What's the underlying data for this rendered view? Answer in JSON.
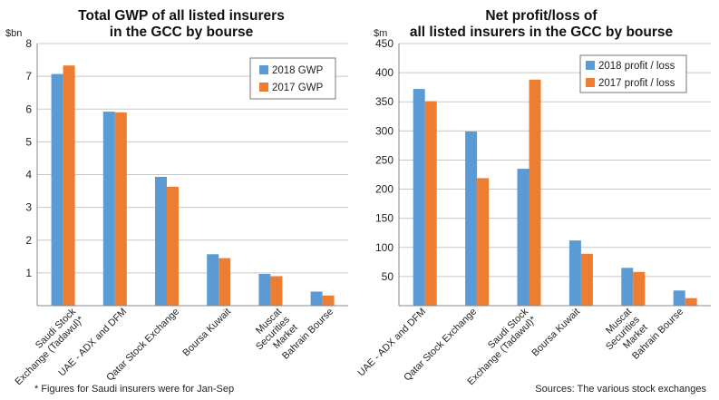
{
  "colors": {
    "series_2018": "#5b9bd5",
    "series_2017": "#ed7d31",
    "axis": "#888888",
    "grid": "#c8c8c8"
  },
  "footnotes": {
    "left": "* Figures for Saudi insurers were for Jan-Sep",
    "right": "Sources: The various stock exchanges"
  },
  "chart_data": [
    {
      "type": "bar",
      "title": [
        "Total GWP of all listed insurers",
        "in the GCC by bourse"
      ],
      "unit_label": "$bn",
      "ylim": [
        0,
        8
      ],
      "yticks": [
        "1",
        "2",
        "3",
        "4",
        "5",
        "6",
        "7",
        "8"
      ],
      "grid": true,
      "legend_placement": "top-right",
      "categories": [
        [
          "Saudi Stock",
          "Exchange (Tadawul)*"
        ],
        [
          "UAE - ADX and DFM"
        ],
        [
          "Qatar Stock Exchange"
        ],
        [
          "Boursa Kuwait"
        ],
        [
          "Muscat",
          "Securities",
          "Market"
        ],
        [
          "Bahrain Bourse"
        ]
      ],
      "series": [
        {
          "name": "2018 GWP",
          "values": [
            7.07,
            5.92,
            3.93,
            1.57,
            0.97,
            0.43
          ]
        },
        {
          "name": "2017 GWP",
          "values": [
            7.33,
            5.9,
            3.63,
            1.45,
            0.9,
            0.31
          ]
        }
      ]
    },
    {
      "type": "bar",
      "title": [
        "Net profit/loss of",
        "all listed insurers in the GCC by bourse"
      ],
      "unit_label": "$m",
      "ylim": [
        0,
        450
      ],
      "yticks": [
        "50",
        "100",
        "150",
        "200",
        "250",
        "300",
        "350",
        "400",
        "450"
      ],
      "grid": true,
      "legend_placement": "top-right",
      "categories": [
        [
          "UAE - ADX and DFM"
        ],
        [
          "Qatar Stock Exchange"
        ],
        [
          "Saudi Stock",
          "Exchange (Tadawul)*"
        ],
        [
          "Boursa Kuwait"
        ],
        [
          "Muscat",
          "Securities",
          "Market"
        ],
        [
          "Bahrain Bourse"
        ]
      ],
      "series": [
        {
          "name": "2018 profit / loss",
          "values": [
            372,
            299,
            235,
            112,
            65,
            26
          ]
        },
        {
          "name": "2017 profit / loss",
          "values": [
            351,
            219,
            388,
            89,
            58,
            13
          ]
        }
      ]
    }
  ]
}
